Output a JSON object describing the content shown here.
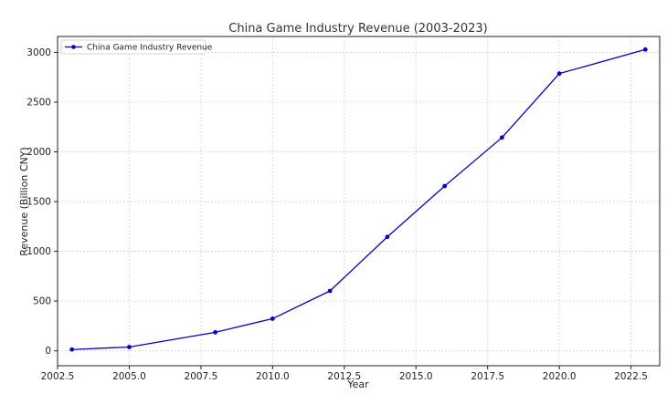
{
  "chart_data": {
    "type": "line",
    "title": "China Game Industry Revenue (2003-2023)",
    "xlabel": "Year",
    "ylabel": "Revenue (Billion CNY)",
    "xlim": [
      2002.5,
      2023.5
    ],
    "ylim": [
      -150,
      3160
    ],
    "x_ticks": [
      2002.5,
      2005.0,
      2007.5,
      2010.0,
      2012.5,
      2015.0,
      2017.5,
      2020.0,
      2022.5
    ],
    "x_tick_labels": [
      "2002.5",
      "2005.0",
      "2007.5",
      "2010.0",
      "2012.5",
      "2015.0",
      "2017.5",
      "2020.0",
      "2022.5"
    ],
    "y_ticks": [
      0,
      500,
      1000,
      1500,
      2000,
      2500,
      3000
    ],
    "y_tick_labels": [
      "0",
      "500",
      "1000",
      "1500",
      "2000",
      "2500",
      "3000"
    ],
    "grid": true,
    "legend_position": "top-left",
    "series": [
      {
        "name": "China Game Industry Revenue",
        "color": "#0000cc",
        "x": [
          2003,
          2005,
          2008,
          2010,
          2012,
          2014,
          2016,
          2018,
          2020,
          2023
        ],
        "y": [
          13,
          38,
          186,
          323,
          602,
          1145,
          1656,
          2144,
          2787,
          3029
        ]
      }
    ]
  }
}
